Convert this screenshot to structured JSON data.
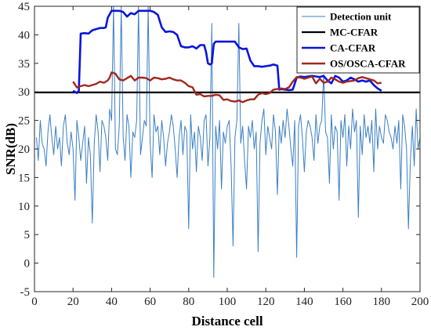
{
  "chart_data": {
    "type": "line",
    "title": "",
    "xlabel": "Distance cell",
    "ylabel": "SNR(dB)",
    "xlim": [
      0,
      200
    ],
    "ylim": [
      -5,
      45
    ],
    "x_ticks": [
      0,
      20,
      40,
      60,
      80,
      100,
      120,
      140,
      160,
      180,
      200
    ],
    "y_ticks": [
      -5,
      0,
      5,
      10,
      15,
      20,
      25,
      30,
      35,
      40,
      45
    ],
    "grid": false,
    "legend_position": "top-right",
    "series": [
      {
        "name": "Detection unit",
        "color": "#3b7fc4",
        "x": [
          1,
          2,
          3,
          4,
          5,
          6,
          7,
          8,
          9,
          10,
          11,
          12,
          13,
          14,
          15,
          16,
          17,
          18,
          19,
          20,
          21,
          22,
          23,
          24,
          25,
          26,
          27,
          28,
          29,
          30,
          31,
          32,
          33,
          34,
          35,
          36,
          37,
          38,
          39,
          40,
          41,
          42,
          43,
          44,
          45,
          46,
          47,
          48,
          49,
          50,
          51,
          52,
          53,
          54,
          55,
          56,
          57,
          58,
          59,
          60,
          61,
          62,
          63,
          64,
          65,
          66,
          67,
          68,
          69,
          70,
          71,
          72,
          73,
          74,
          75,
          76,
          77,
          78,
          79,
          80,
          81,
          82,
          83,
          84,
          85,
          86,
          87,
          88,
          89,
          90,
          91,
          92,
          93,
          94,
          95,
          96,
          97,
          98,
          99,
          100,
          101,
          102,
          103,
          104,
          105,
          106,
          107,
          108,
          109,
          110,
          111,
          112,
          113,
          114,
          115,
          116,
          117,
          118,
          119,
          120,
          121,
          122,
          123,
          124,
          125,
          126,
          127,
          128,
          129,
          130,
          131,
          132,
          133,
          134,
          135,
          136,
          137,
          138,
          139,
          140,
          141,
          142,
          143,
          144,
          145,
          146,
          147,
          148,
          149,
          150,
          151,
          152,
          153,
          154,
          155,
          156,
          157,
          158,
          159,
          160,
          161,
          162,
          163,
          164,
          165,
          166,
          167,
          168,
          169,
          170,
          171,
          172,
          173,
          174,
          175,
          176,
          177,
          178,
          179,
          180,
          181,
          182,
          183,
          184,
          185,
          186,
          187,
          188,
          189,
          190,
          191,
          192,
          193,
          194,
          195,
          196,
          197,
          198,
          199,
          200
        ],
        "y": [
          22,
          18,
          25,
          21,
          20,
          17,
          23,
          26,
          22,
          19,
          24,
          20,
          22,
          17,
          24,
          26,
          21,
          19,
          23,
          20,
          11,
          25,
          22,
          18,
          21,
          24,
          14,
          22,
          19,
          7,
          21,
          26,
          23,
          16,
          25,
          24,
          22,
          18,
          27,
          25,
          45,
          20,
          19,
          24,
          45,
          22,
          18,
          26,
          24,
          15,
          23,
          22,
          25,
          45,
          19,
          22,
          25,
          24,
          45,
          21,
          15,
          26,
          23,
          24,
          19,
          25,
          22,
          17,
          21,
          23,
          26,
          24,
          20,
          15,
          22,
          25,
          19,
          24,
          23,
          6,
          26,
          20,
          23,
          16,
          24,
          22,
          18,
          25,
          26,
          17,
          22,
          42,
          -2.5,
          24,
          20,
          25,
          13,
          23,
          21,
          24,
          25,
          17,
          3,
          22,
          25,
          42,
          21,
          24,
          18,
          13,
          24,
          22,
          25,
          20,
          23,
          2,
          21,
          25,
          27,
          19,
          24,
          22,
          20,
          26,
          23,
          12,
          24,
          21,
          25,
          22,
          27,
          24,
          20,
          17,
          25,
          1,
          24,
          26,
          22,
          16,
          23,
          25,
          24,
          22,
          18,
          26,
          21,
          24,
          25,
          33,
          23,
          22,
          14,
          26,
          20,
          24,
          23,
          11,
          25,
          22,
          26,
          17,
          24,
          20,
          27,
          23,
          25,
          8,
          24,
          19,
          26,
          22,
          24,
          21,
          25,
          16,
          27,
          20,
          24,
          22,
          21,
          26,
          25,
          23,
          22,
          20,
          24,
          21,
          25,
          13,
          26,
          24,
          20,
          6,
          18,
          24,
          17,
          27,
          20,
          22
        ]
      },
      {
        "name": "MC-CFAR",
        "color": "#000000",
        "x": [
          0,
          200
        ],
        "y": [
          29.9,
          29.9
        ]
      },
      {
        "name": "CA-CFAR",
        "color": "#0a14dc",
        "x": [
          20,
          22,
          23,
          24,
          26,
          28,
          30,
          32,
          34,
          36,
          37,
          38,
          40,
          42,
          44,
          46,
          48,
          50,
          52,
          54,
          56,
          58,
          60,
          62,
          64,
          66,
          68,
          70,
          72,
          74,
          76,
          78,
          80,
          82,
          84,
          86,
          88,
          89,
          90,
          91,
          92,
          93,
          94,
          96,
          98,
          100,
          102,
          104,
          106,
          108,
          110,
          112,
          114,
          116,
          118,
          120,
          122,
          124,
          126,
          127,
          128,
          130,
          132,
          134,
          136,
          138,
          140,
          142,
          144,
          146,
          148,
          150,
          152,
          154,
          156,
          158,
          160,
          162,
          164,
          166,
          168,
          170,
          172,
          174,
          176,
          178,
          180
        ],
        "y": [
          30.2,
          29.8,
          30.2,
          40.2,
          40.3,
          40.2,
          40.8,
          41.0,
          41.2,
          41.2,
          41.3,
          43.0,
          44.2,
          44.2,
          44.2,
          44.0,
          43.2,
          43.8,
          43.6,
          44.2,
          44.2,
          44.2,
          44.2,
          44.0,
          43.5,
          41.3,
          40.5,
          40.6,
          40.5,
          40.0,
          38.0,
          37.8,
          37.8,
          38.0,
          37.6,
          38.2,
          38.2,
          37.0,
          35.0,
          34.8,
          35.0,
          38.4,
          38.8,
          38.8,
          38.8,
          38.8,
          38.8,
          38.8,
          37.8,
          37.5,
          37.6,
          35.5,
          34.5,
          34.5,
          34.4,
          34.5,
          34.6,
          34.8,
          34.6,
          30.4,
          30.5,
          30.4,
          30.3,
          30.4,
          32.5,
          32.7,
          32.6,
          32.7,
          32.8,
          32.7,
          32.6,
          32.8,
          32.0,
          31.5,
          32.8,
          32.5,
          31.8,
          32.0,
          32.5,
          32.2,
          31.8,
          32.0,
          31.8,
          32.0,
          31.2,
          30.6,
          30.2
        ]
      },
      {
        "name": "OS/OSCA-CFAR",
        "color": "#a0281e",
        "x": [
          20,
          22,
          24,
          26,
          28,
          30,
          32,
          34,
          36,
          38,
          39,
          40,
          42,
          44,
          46,
          48,
          50,
          52,
          54,
          56,
          58,
          60,
          62,
          64,
          66,
          68,
          70,
          72,
          74,
          76,
          78,
          80,
          82,
          84,
          86,
          88,
          90,
          92,
          94,
          96,
          98,
          100,
          102,
          104,
          106,
          108,
          110,
          112,
          114,
          116,
          118,
          120,
          122,
          124,
          126,
          128,
          130,
          132,
          134,
          136,
          138,
          140,
          142,
          144,
          146,
          148,
          150,
          152,
          154,
          156,
          158,
          160,
          162,
          164,
          166,
          168,
          170,
          172,
          174,
          176,
          178,
          180
        ],
        "y": [
          31.8,
          30.8,
          31.0,
          31.2,
          31.0,
          31.2,
          31.4,
          31.8,
          31.6,
          32.0,
          32.5,
          33.4,
          33.2,
          32.2,
          32.0,
          32.4,
          32.8,
          32.0,
          32.5,
          32.5,
          32.4,
          32.0,
          32.5,
          32.4,
          32.2,
          32.3,
          32.5,
          32.2,
          32.0,
          32.0,
          31.6,
          31.0,
          30.8,
          29.5,
          29.6,
          29.2,
          29.3,
          29.3,
          29.5,
          29.4,
          28.6,
          28.7,
          28.4,
          28.3,
          28.5,
          28.2,
          28.5,
          28.7,
          28.7,
          29.5,
          29.8,
          29.6,
          29.8,
          30.4,
          30.5,
          30.6,
          30.5,
          30.8,
          31.8,
          32.6,
          32.5,
          32.3,
          32.5,
          32.7,
          31.5,
          32.3,
          31.6,
          31.8,
          32.5,
          32.2,
          31.8,
          31.6,
          31.8,
          31.9,
          32.0,
          32.4,
          32.6,
          32.4,
          32.2,
          32.0,
          31.5,
          31.6
        ]
      }
    ]
  }
}
